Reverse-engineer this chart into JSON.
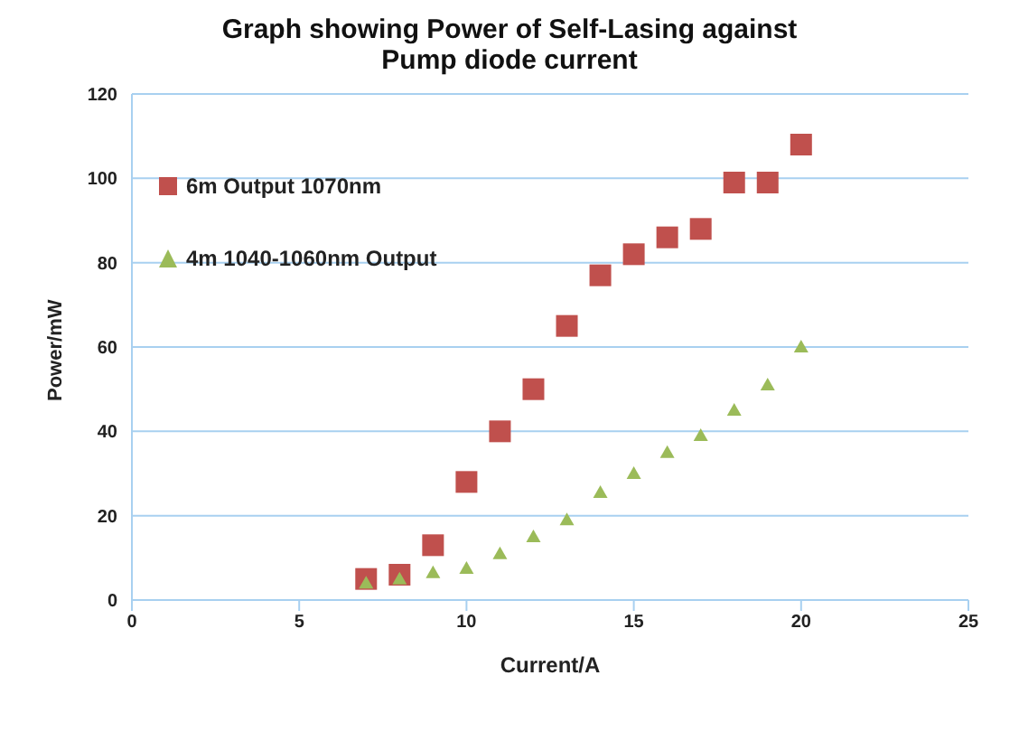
{
  "chart_data": {
    "type": "scatter",
    "title": "Graph showing Power of Self-Lasing against Pump diode current",
    "xlabel": "Current/A",
    "ylabel": "Power/mW",
    "x": [
      7,
      8,
      9,
      10,
      11,
      12,
      13,
      14,
      15,
      16,
      17,
      18,
      19,
      20
    ],
    "series": [
      {
        "name": "6m Output 1070nm",
        "color": "#c0504d",
        "marker": "square",
        "values": [
          5,
          6,
          13,
          28,
          40,
          50,
          65,
          77,
          82,
          86,
          88,
          99,
          99,
          108
        ]
      },
      {
        "name": "4m 1040-1060nm Output",
        "color": "#9bbb59",
        "marker": "triangle",
        "values": [
          4,
          5,
          6.5,
          7.5,
          11,
          15,
          19,
          25.5,
          30,
          35,
          39,
          45,
          51,
          60
        ]
      }
    ],
    "xlim": [
      0,
      25
    ],
    "xticks": [
      0,
      5,
      10,
      15,
      20,
      25
    ],
    "ylim": [
      0,
      120
    ],
    "yticks": [
      0,
      20,
      40,
      60,
      80,
      100,
      120
    ],
    "grid": "y",
    "legend": "top left"
  }
}
